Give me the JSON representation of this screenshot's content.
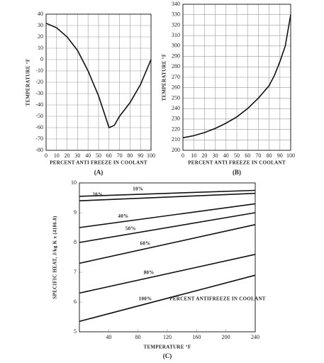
{
  "chart_data": [
    {
      "type": "line",
      "y_label": "TEMPERATURE °F",
      "x_label": "PERCENT ANTI FREEZE IN COOLANT",
      "caption": "(A)",
      "x": [
        0,
        10,
        20,
        30,
        40,
        50,
        55,
        60,
        65,
        70,
        80,
        90,
        100
      ],
      "values": [
        32,
        28,
        20,
        8,
        -10,
        -32,
        -46,
        -60,
        -58,
        -50,
        -38,
        -22,
        0
      ],
      "color": "#111111",
      "xlim": [
        0,
        100
      ],
      "xticks": [
        0,
        10,
        20,
        30,
        40,
        50,
        60,
        70,
        80,
        90,
        100
      ],
      "ylim": [
        -80,
        40
      ],
      "yticks": [
        40,
        30,
        20,
        10,
        0,
        -10,
        -20,
        -30,
        -40,
        -50,
        -60,
        -70,
        -80
      ],
      "grid": true
    },
    {
      "type": "line",
      "y_label": "TEMPERATURE °F",
      "x_label": "PERCENT ANTI FREEZE IN COOLANT",
      "caption": "(B)",
      "x": [
        0,
        10,
        20,
        30,
        40,
        50,
        60,
        70,
        80,
        85,
        90,
        95,
        100
      ],
      "values": [
        212,
        214,
        217,
        221,
        226,
        232,
        240,
        250,
        262,
        272,
        285,
        300,
        330
      ],
      "color": "#111111",
      "xlim": [
        0,
        100
      ],
      "xticks": [
        0,
        10,
        20,
        30,
        40,
        50,
        60,
        70,
        80,
        90,
        100
      ],
      "ylim": [
        200,
        340
      ],
      "yticks": [
        340,
        330,
        320,
        310,
        300,
        290,
        280,
        270,
        260,
        250,
        240,
        230,
        220,
        210,
        200
      ],
      "grid": true
    },
    {
      "type": "line",
      "y_label": "SPECIFIC HEAT, J/kg K x (4186.8)",
      "x_label": "TEMPERATURE °F",
      "caption": "(C)",
      "annotation": "PERCENT ANTIFREEZE IN COOLANT",
      "x": [
        0,
        240
      ],
      "series": [
        {
          "name": "10%",
          "color": "#111111",
          "values": [
            9.55,
            9.75
          ]
        },
        {
          "name": "20%",
          "color": "#111111",
          "values": [
            9.4,
            9.65
          ]
        },
        {
          "name": "40%",
          "color": "#111111",
          "values": [
            8.5,
            9.3
          ]
        },
        {
          "name": "50%",
          "color": "#111111",
          "values": [
            8.0,
            9.0
          ]
        },
        {
          "name": "60%",
          "color": "#111111",
          "values": [
            7.3,
            8.6
          ]
        },
        {
          "name": "80%",
          "color": "#111111",
          "values": [
            6.3,
            7.6
          ]
        },
        {
          "name": "100%",
          "color": "#111111",
          "values": [
            5.35,
            6.9
          ]
        }
      ],
      "xlim": [
        0,
        240
      ],
      "xticks": [
        40,
        80,
        120,
        160,
        200,
        240
      ],
      "ylim": [
        5,
        10
      ],
      "yticks": [
        5,
        6,
        7,
        8,
        9,
        10
      ],
      "grid": false
    }
  ]
}
